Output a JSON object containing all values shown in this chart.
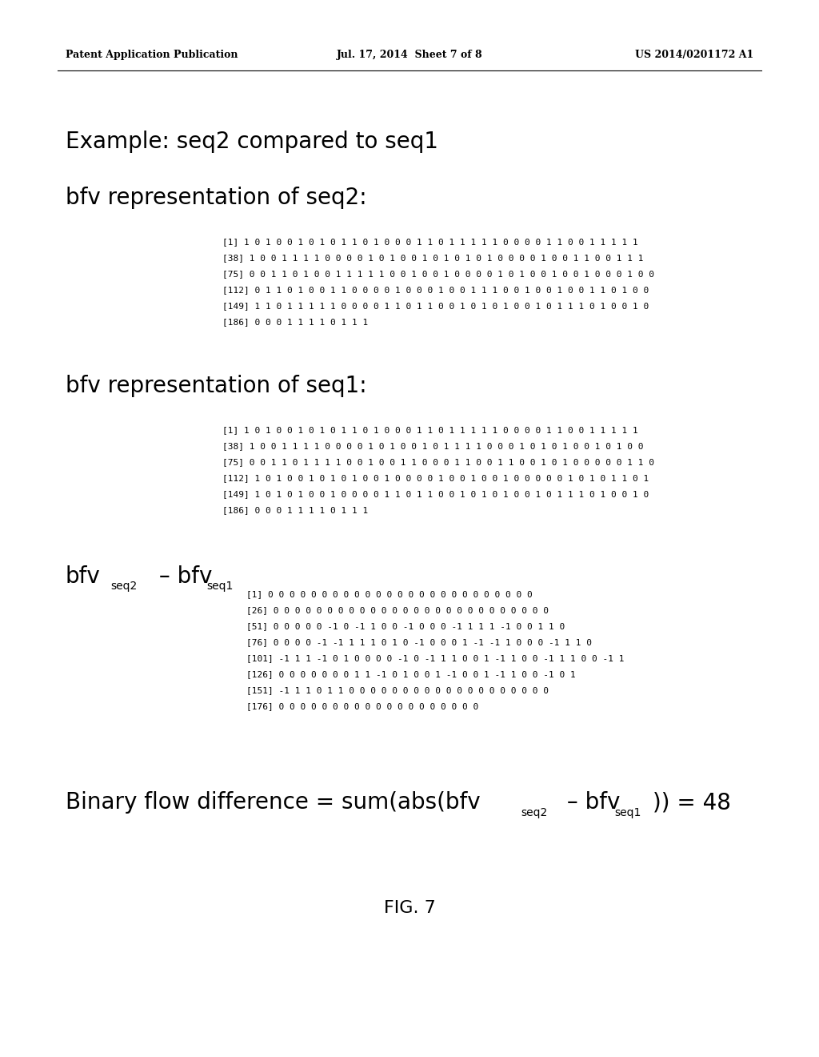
{
  "bg_color": "#ffffff",
  "header_left": "Patent Application Publication",
  "header_mid": "Jul. 17, 2014  Sheet 7 of 8",
  "header_right": "US 2014/0201172 A1",
  "title_example": "Example: seq2 compared to seq1",
  "title_bfv_seq2": "bfv representation of seq2:",
  "bfv_seq2_lines": [
    "[1] 1 0 1 0 0 1 0 1 0 1 1 0 1 0 0 0 1 1 0 1 1 1 1 1 0 0 0 0 1 1 0 0 1 1 1 1 1",
    "[38] 1 0 0 1 1 1 1 0 0 0 0 1 0 1 0 0 1 0 1 0 1 0 1 0 0 0 0 1 0 0 1 1 0 0 1 1 1",
    "[75] 0 0 1 1 0 1 0 0 1 1 1 1 1 0 0 1 0 0 1 0 0 0 0 1 0 1 0 0 1 0 0 1 0 0 0 1 0 0",
    "[112] 0 1 1 0 1 0 0 1 1 0 0 0 0 1 0 0 0 1 0 0 1 1 1 0 0 1 0 0 1 0 0 1 1 0 1 0 0",
    "[149] 1 1 0 1 1 1 1 1 0 0 0 0 1 1 0 1 1 0 0 1 0 1 0 1 0 0 1 0 1 1 1 0 1 0 0 1 0",
    "[186] 0 0 0 1 1 1 1 0 1 1 1"
  ],
  "title_bfv_seq1": "bfv representation of seq1:",
  "bfv_seq1_lines": [
    "[1] 1 0 1 0 0 1 0 1 0 1 1 0 1 0 0 0 1 1 0 1 1 1 1 1 0 0 0 0 1 1 0 0 1 1 1 1 1",
    "[38] 1 0 0 1 1 1 1 0 0 0 0 1 0 1 0 0 1 0 1 1 1 1 0 0 0 1 0 1 0 1 0 0 1 0 1 0 0",
    "[75] 0 0 1 1 0 1 1 1 1 0 0 1 0 0 1 1 0 0 0 1 1 0 0 1 1 0 0 1 0 1 0 0 0 0 0 1 1 0",
    "[112] 1 0 1 0 0 1 0 1 0 1 0 0 1 0 0 0 0 1 0 0 1 0 0 1 0 0 0 0 0 1 0 1 0 1 1 0 1",
    "[149] 1 0 1 0 1 0 0 1 0 0 0 0 1 1 0 1 1 0 0 1 0 1 0 1 0 0 1 0 1 1 1 0 1 0 0 1 0",
    "[186] 0 0 0 1 1 1 1 0 1 1 1"
  ],
  "diff_lines": [
    "[1] 0 0 0 0 0 0 0 0 0 0 0 0 0 0 0 0 0 0 0 0 0 0 0 0 0",
    "[26] 0 0 0 0 0 0 0 0 0 0 0 0 0 0 0 0 0 0 0 0 0 0 0 0 0 0",
    "[51] 0 0 0 0 0 -1 0 -1 1 0 0 -1 0 0 0 -1 1 1 1 -1 0 0 1 1 0",
    "[76] 0 0 0 0 -1 -1 1 1 1 0 1 0 -1 0 0 0 1 -1 -1 1 0 0 0 -1 1 1 0",
    "[101] -1 1 1 -1 0 1 0 0 0 0 -1 0 -1 1 1 0 0 1 -1 1 0 0 -1 1 1 0 0 -1 1",
    "[126] 0 0 0 0 0 0 0 1 1 -1 0 1 0 0 1 -1 0 0 1 -1 1 0 0 -1 0 1",
    "[151] -1 1 1 0 1 1 0 0 0 0 0 0 0 0 0 0 0 0 0 0 0 0 0 0 0",
    "[176] 0 0 0 0 0 0 0 0 0 0 0 0 0 0 0 0 0 0 0"
  ],
  "fig_label": "FIG. 7"
}
